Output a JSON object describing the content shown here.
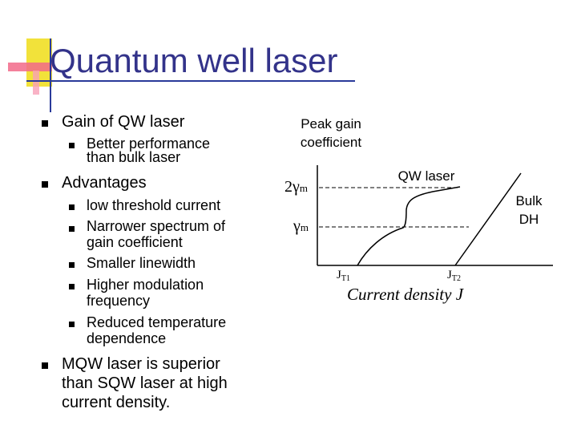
{
  "slide": {
    "title": "Quantum well laser",
    "bullets": {
      "gain": "Gain of QW laser",
      "gain_sub": [
        "Better performance",
        "than bulk laser"
      ],
      "advantages": "Advantages",
      "adv_items": [
        [
          "low threshold current"
        ],
        [
          "Narrower spectrum of",
          "gain coefficient"
        ],
        [
          "Smaller linewidth"
        ],
        [
          "Higher modulation",
          "frequency"
        ],
        [
          "Reduced temperature",
          "dependence"
        ]
      ],
      "mqw": [
        "MQW laser is superior",
        "than SQW laser at high",
        "current density."
      ]
    }
  },
  "diagram": {
    "y_title": [
      "Peak gain",
      "coefficient"
    ],
    "qw_label": "QW laser",
    "bulk_label": [
      "Bulk",
      "DH"
    ],
    "level_2gm": "2γ",
    "level_2gm_sub": "m",
    "level_gm": "γ",
    "level_gm_sub": "m",
    "jt1": "J",
    "jt1_sub": "T1",
    "jt2": "J",
    "jt2_sub": "T2",
    "x_title": "Current density J"
  },
  "colors": {
    "title": "#33338a",
    "deco_yellow": "#f2e23a",
    "deco_pink": "#f26a8a",
    "deco_blue": "#2a3a9a"
  }
}
